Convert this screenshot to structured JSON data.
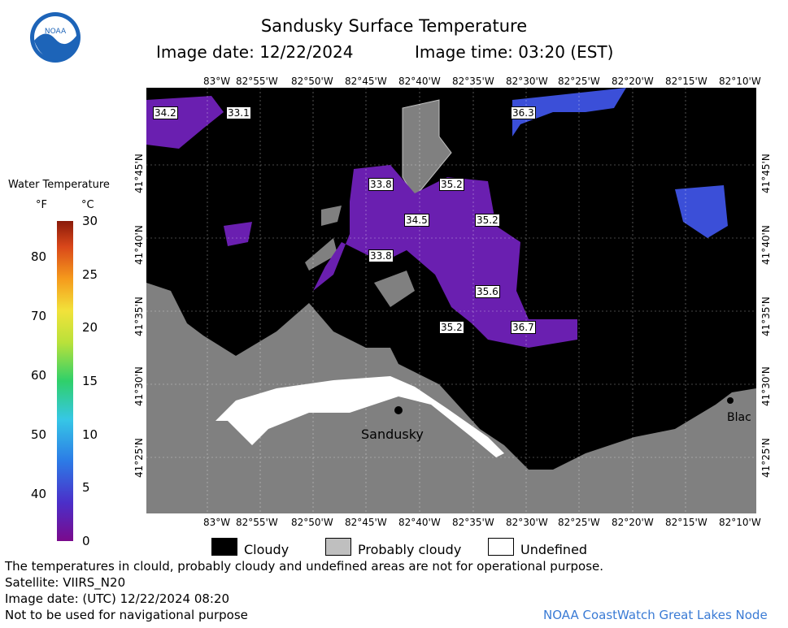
{
  "header": {
    "title": "Sandusky Surface Temperature",
    "image_date": "Image date: 12/22/2024",
    "image_time": "Image time: 03:20 (EST)"
  },
  "logo": {
    "icon": "noaa-logo-icon",
    "text": "NOAA"
  },
  "legend": {
    "title": "Water Temperature",
    "unit_f": "°F",
    "unit_c": "°C",
    "f_ticks": [
      "40",
      "50",
      "60",
      "70",
      "80"
    ],
    "c_ticks": [
      "0",
      "5",
      "10",
      "15",
      "20",
      "25",
      "30"
    ],
    "f_tick_values": [
      40,
      50,
      60,
      70,
      80
    ],
    "c_tick_values": [
      0,
      5,
      10,
      15,
      20,
      25,
      30
    ],
    "range_c": [
      0,
      30
    ]
  },
  "map": {
    "lon_labels": [
      "83°W",
      "82°55'W",
      "82°50'W",
      "82°45'W",
      "82°40'W",
      "82°35'W",
      "82°30'W",
      "82°25'W",
      "82°20'W",
      "82°15'W",
      "82°10'W"
    ],
    "lat_labels": [
      "41°45'N",
      "41°40'N",
      "41°35'N",
      "41°30'N",
      "41°25'N"
    ],
    "temperature_labels": [
      "34.2",
      "33.1",
      "36.3",
      "33.8",
      "35.2",
      "34.5",
      "35.2",
      "33.8",
      "35.6",
      "35.2",
      "36.7"
    ],
    "city_labels": [
      "Sandusky",
      "Blac"
    ],
    "colors": {
      "cloudy": "#000000",
      "probably_cloudy": "#bfbfbf",
      "land": "#808080",
      "undefined": "#ffffff",
      "cold_water": "#6a1fb0",
      "blue_water": "#3b4fd8"
    }
  },
  "key": {
    "cloudy": "Cloudy",
    "probably_cloudy": "Probably cloudy",
    "undefined": "Undefined"
  },
  "footer": {
    "disclaimer": "The temperatures in clould, probably cloudy and undefined areas are not for operational purpose.",
    "satellite": "Satellite: VIIRS_N20",
    "utc_date": "Image date: (UTC) 12/22/2024  08:20",
    "navigation": "Not to be used for navigational purpose",
    "node": "NOAA CoastWatch Great Lakes Node"
  }
}
